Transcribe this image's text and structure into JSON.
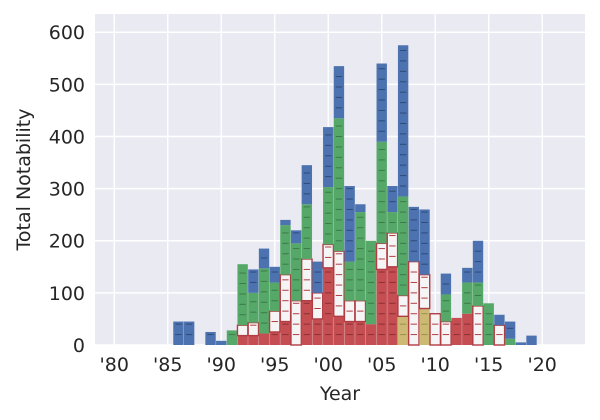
{
  "chart_data": {
    "type": "bar",
    "stacked": true,
    "style": "seaborn-darkgrid",
    "xlabel": "Year",
    "ylabel": "Total Notability",
    "xlim": [
      1978.2,
      2024
    ],
    "ylim": [
      0,
      635
    ],
    "grid": true,
    "x_ticks": [
      1980,
      1985,
      1990,
      1995,
      2000,
      2005,
      2010,
      2015,
      2020
    ],
    "x_tick_labels": [
      "'80",
      "'85",
      "'90",
      "'95",
      "'00",
      "'05",
      "'10",
      "'15",
      "'20"
    ],
    "y_ticks": [
      0,
      100,
      200,
      300,
      400,
      500,
      600
    ],
    "y_tick_labels": [
      "0",
      "100",
      "200",
      "300",
      "400",
      "500",
      "600"
    ],
    "colors": {
      "background": "#eaeaf2",
      "grid": "#ffffff",
      "blue": "#4c72b0",
      "green": "#55a868",
      "red": "#c44e52",
      "white": "#f5f5f5",
      "yellow": "#ccb974"
    },
    "years": [
      1986,
      1987,
      1989,
      1990,
      1991,
      1992,
      1993,
      1994,
      1995,
      1996,
      1997,
      1998,
      1999,
      2000,
      2001,
      2002,
      2003,
      2004,
      2005,
      2006,
      2007,
      2008,
      2009,
      2010,
      2011,
      2012,
      2013,
      2014,
      2015,
      2016,
      2017,
      2018,
      2019
    ],
    "series": [
      {
        "color": "red",
        "values": [
          0,
          0,
          0,
          0,
          0,
          18,
          18,
          22,
          25,
          45,
          0,
          85,
          50,
          148,
          55,
          45,
          45,
          40,
          145,
          150,
          0,
          0,
          0,
          0,
          0,
          52,
          60,
          0,
          0,
          0,
          0,
          0,
          0
        ]
      },
      {
        "color": "yellow",
        "values": [
          0,
          0,
          0,
          0,
          0,
          0,
          0,
          0,
          0,
          0,
          0,
          0,
          0,
          0,
          0,
          0,
          0,
          0,
          0,
          0,
          55,
          0,
          70,
          0,
          0,
          0,
          0,
          0,
          0,
          0,
          0,
          0,
          0
        ]
      },
      {
        "color": "white",
        "values": [
          0,
          0,
          0,
          0,
          0,
          20,
          25,
          0,
          40,
          90,
          85,
          80,
          50,
          45,
          125,
          40,
          40,
          0,
          50,
          65,
          40,
          160,
          65,
          60,
          45,
          0,
          0,
          75,
          0,
          38,
          0,
          0,
          0
        ]
      },
      {
        "color": "green",
        "values": [
          0,
          0,
          0,
          0,
          28,
          117,
          57,
          125,
          55,
          95,
          110,
          105,
          0,
          110,
          255,
          75,
          170,
          160,
          195,
          40,
          190,
          0,
          0,
          0,
          52,
          0,
          60,
          45,
          80,
          0,
          12,
          0,
          0
        ]
      },
      {
        "color": "blue",
        "values": [
          45,
          45,
          25,
          8,
          0,
          0,
          45,
          38,
          30,
          10,
          25,
          75,
          60,
          115,
          100,
          145,
          15,
          0,
          150,
          50,
          290,
          105,
          125,
          0,
          40,
          0,
          28,
          80,
          0,
          20,
          33,
          5,
          18
        ]
      }
    ]
  }
}
